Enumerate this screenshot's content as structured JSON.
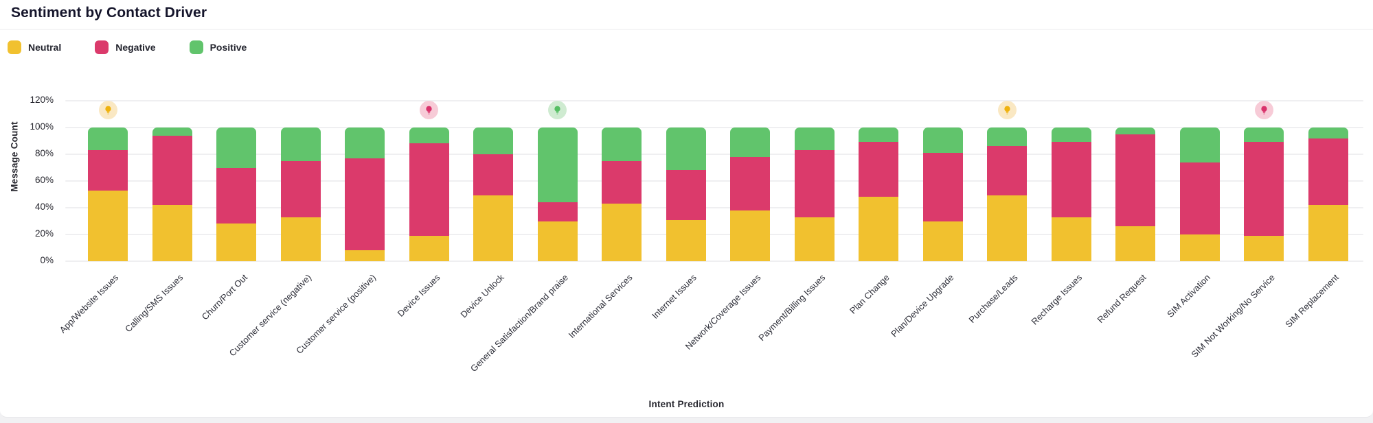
{
  "header": {
    "title": "Sentiment by Contact Driver"
  },
  "legend": {
    "items": [
      {
        "label": "Neutral",
        "color": "#F1C12F"
      },
      {
        "label": "Negative",
        "color": "#DB3A6B"
      },
      {
        "label": "Positive",
        "color": "#61C46C"
      }
    ]
  },
  "axes": {
    "y_title": "Message Count",
    "x_title": "Intent Prediction",
    "y_ticks": [
      {
        "label": "120%",
        "value": 120
      },
      {
        "label": "100%",
        "value": 100
      },
      {
        "label": "80%",
        "value": 80
      },
      {
        "label": "60%",
        "value": 60
      },
      {
        "label": "40%",
        "value": 40
      },
      {
        "label": "20%",
        "value": 20
      },
      {
        "label": "0%",
        "value": 0
      }
    ]
  },
  "chart_data": {
    "type": "bar",
    "stacked": true,
    "unit": "percent",
    "title": "Sentiment by Contact Driver",
    "xlabel": "Intent Prediction",
    "ylabel": "Message Count",
    "ylim": [
      0,
      120
    ],
    "grid": true,
    "legend_position": "top-left",
    "categories": [
      "App/Website Issues",
      "Calling/SMS Issues",
      "Churn/Port Out",
      "Customer service (negative)",
      "Customer service (positive)",
      "Device Issues",
      "Device Unlock",
      "General Satisfaction/Brand praise",
      "International Services",
      "Internet Issues",
      "Network/Coverage Issues",
      "Payment/Billing Issues",
      "Plan Change",
      "Plan/Device Upgrade",
      "Purchase/Leads",
      "Recharge Issues",
      "Refund Request",
      "SIM Activation",
      "SIM Not Working/No Service",
      "SIM Replacement"
    ],
    "series": [
      {
        "name": "Neutral",
        "color": "#F1C12F",
        "values": [
          53,
          42,
          28,
          33,
          8,
          19,
          49,
          30,
          43,
          31,
          38,
          33,
          48,
          30,
          49,
          33,
          26,
          20,
          19,
          42
        ]
      },
      {
        "name": "Negative",
        "color": "#DB3A6B",
        "values": [
          30,
          52,
          42,
          42,
          69,
          69,
          31,
          14,
          32,
          37,
          40,
          50,
          41,
          51,
          37,
          56,
          69,
          54,
          70,
          50
        ]
      },
      {
        "name": "Positive",
        "color": "#61C46C",
        "values": [
          17,
          6,
          30,
          25,
          23,
          12,
          20,
          56,
          25,
          32,
          22,
          17,
          11,
          19,
          14,
          11,
          5,
          26,
          11,
          8
        ]
      }
    ],
    "annotations": [
      {
        "category": "App/Website Issues",
        "icon": "lightbulb",
        "variant": "neutral"
      },
      {
        "category": "Device Issues",
        "icon": "lightbulb",
        "variant": "negative"
      },
      {
        "category": "General Satisfaction/Brand praise",
        "icon": "lightbulb",
        "variant": "positive"
      },
      {
        "category": "Purchase/Leads",
        "icon": "lightbulb",
        "variant": "neutral"
      },
      {
        "category": "SIM Not Working/No Service",
        "icon": "lightbulb",
        "variant": "negative"
      }
    ],
    "annotation_colors": {
      "neutral": {
        "bg": "#FAE8C3",
        "fg": "#EFB20E"
      },
      "negative": {
        "bg": "#F7CBD7",
        "fg": "#D9326B"
      },
      "positive": {
        "bg": "#CFEBD1",
        "fg": "#55BE63"
      }
    }
  }
}
